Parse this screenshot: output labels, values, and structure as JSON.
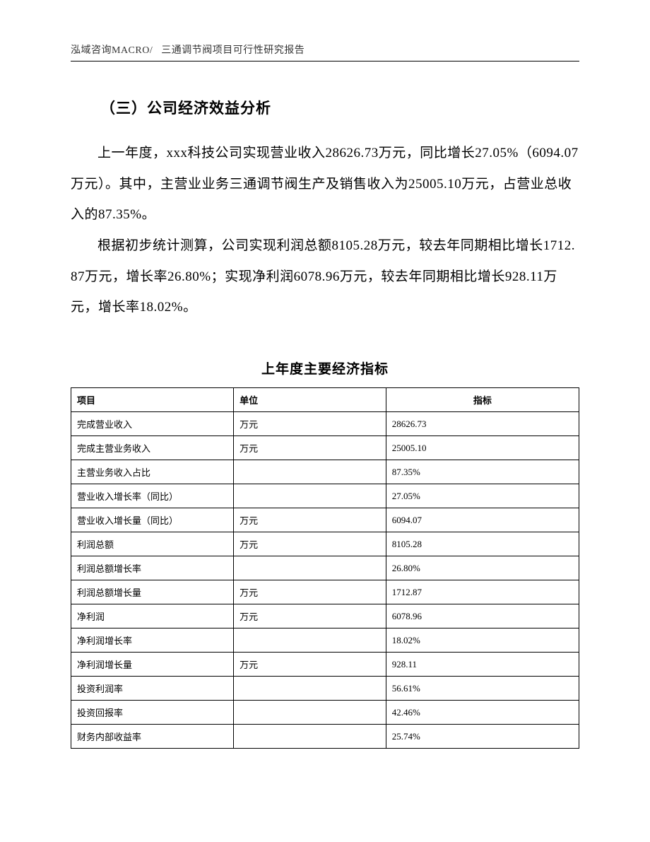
{
  "header": {
    "left": "泓域咨询MACRO/",
    "right": "三通调节阀项目可行性研究报告"
  },
  "section": {
    "heading": "（三）公司经济效益分析",
    "para1": "上一年度，xxx科技公司实现营业收入28626.73万元，同比增长27.05%（6094.07万元）。其中，主营业业务三通调节阀生产及销售收入为25005.10万元，占营业总收入的87.35%。",
    "para2": "根据初步统计测算，公司实现利润总额8105.28万元，较去年同期相比增长1712.87万元，增长率26.80%；实现净利润6078.96万元，较去年同期相比增长928.11万元，增长率18.02%。"
  },
  "table": {
    "title": "上年度主要经济指标",
    "columns": {
      "project": "项目",
      "unit": "单位",
      "value": "指标"
    },
    "rows": [
      {
        "project": "完成营业收入",
        "unit": "万元",
        "value": "28626.73"
      },
      {
        "project": "完成主营业务收入",
        "unit": "万元",
        "value": "25005.10"
      },
      {
        "project": "主营业务收入占比",
        "unit": "",
        "value": "87.35%"
      },
      {
        "project": "营业收入增长率（同比）",
        "unit": "",
        "value": "27.05%"
      },
      {
        "project": "营业收入增长量（同比）",
        "unit": "万元",
        "value": "6094.07"
      },
      {
        "project": "利润总额",
        "unit": "万元",
        "value": "8105.28"
      },
      {
        "project": "利润总额增长率",
        "unit": "",
        "value": "26.80%"
      },
      {
        "project": "利润总额增长量",
        "unit": "万元",
        "value": "1712.87"
      },
      {
        "project": "净利润",
        "unit": "万元",
        "value": "6078.96"
      },
      {
        "project": "净利润增长率",
        "unit": "",
        "value": "18.02%"
      },
      {
        "project": "净利润增长量",
        "unit": "万元",
        "value": "928.11"
      },
      {
        "project": "投资利润率",
        "unit": "",
        "value": "56.61%"
      },
      {
        "project": "投资回报率",
        "unit": "",
        "value": "42.46%"
      },
      {
        "project": "财务内部收益率",
        "unit": "",
        "value": "25.74%"
      }
    ]
  },
  "style": {
    "page_bg": "#ffffff",
    "text_color": "#000000",
    "border_color": "#000000",
    "body_fontsize_pt": 14,
    "heading_fontsize_pt": 16,
    "table_fontsize_pt": 10
  }
}
